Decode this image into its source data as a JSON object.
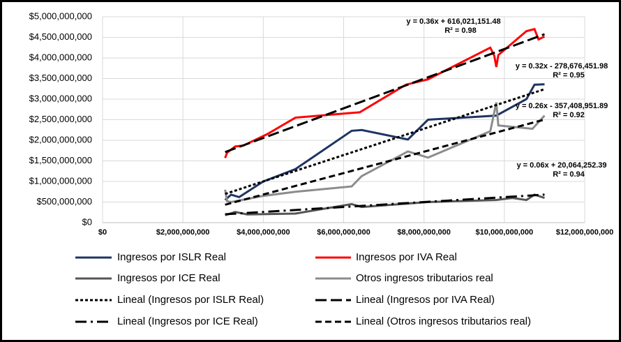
{
  "chart_data": {
    "type": "line",
    "xlim": [
      0,
      12000000000
    ],
    "xticks": [
      {
        "value": 0,
        "label": "$0"
      },
      {
        "value": 2000000000,
        "label": "$2,000,000,000"
      },
      {
        "value": 4000000000,
        "label": "$4,000,000,000"
      },
      {
        "value": 6000000000,
        "label": "$6,000,000,000"
      },
      {
        "value": 8000000000,
        "label": "$8,000,000,000"
      },
      {
        "value": 10000000000,
        "label": "$10,000,000,000"
      },
      {
        "value": 12000000000,
        "label": "$12,000,000,000"
      }
    ],
    "ylim": [
      0,
      5000000000
    ],
    "yticks": [
      {
        "value": 0,
        "label": "$0"
      },
      {
        "value": 500000000,
        "label": "$500,000,000"
      },
      {
        "value": 1000000000,
        "label": "$1,000,000,000"
      },
      {
        "value": 1500000000,
        "label": "$1,500,000,000"
      },
      {
        "value": 2000000000,
        "label": "$2,000,000,000"
      },
      {
        "value": 2500000000,
        "label": "$2,500,000,000"
      },
      {
        "value": 3000000000,
        "label": "$3,000,000,000"
      },
      {
        "value": 3500000000,
        "label": "$3,500,000,000"
      },
      {
        "value": 4000000000,
        "label": "$4,000,000,000"
      },
      {
        "value": 4500000000,
        "label": "$4,500,000,000"
      },
      {
        "value": 5000000000,
        "label": "$5,000,000,000"
      }
    ],
    "grid": true,
    "legend": "bottom",
    "series": [
      {
        "name": "Ingresos por ISLR Real",
        "color": "#1f3464",
        "dash": "solid",
        "x": [
          3050000000,
          3200000000,
          3400000000,
          4000000000,
          4800000000,
          6200000000,
          6450000000,
          7600000000,
          8100000000,
          9800000000,
          10550000000,
          10750000000,
          11000000000
        ],
        "values": [
          550000000,
          680000000,
          620000000,
          1000000000,
          1300000000,
          2230000000,
          2250000000,
          2020000000,
          2500000000,
          2600000000,
          3000000000,
          3350000000,
          3360000000
        ]
      },
      {
        "name": "Ingresos por IVA  Real",
        "color": "#ff0000",
        "dash": "solid",
        "x": [
          3050000000,
          3100000000,
          3300000000,
          3500000000,
          4100000000,
          4800000000,
          6400000000,
          7550000000,
          8100000000,
          9650000000,
          9750000000,
          9800000000,
          9850000000,
          10550000000,
          10750000000,
          10850000000,
          11000000000
        ],
        "values": [
          1570000000,
          1700000000,
          1850000000,
          1870000000,
          2150000000,
          2550000000,
          2680000000,
          3350000000,
          3480000000,
          4250000000,
          4050000000,
          3780000000,
          4070000000,
          4650000000,
          4700000000,
          4450000000,
          4520000000
        ]
      },
      {
        "name": "Ingresos por ICE Real",
        "color": "#555555",
        "dash": "solid",
        "x": [
          3050000000,
          3300000000,
          3600000000,
          4800000000,
          6200000000,
          6450000000,
          8100000000,
          9800000000,
          10200000000,
          10550000000,
          10750000000,
          11000000000
        ],
        "values": [
          180000000,
          260000000,
          200000000,
          220000000,
          450000000,
          380000000,
          500000000,
          550000000,
          600000000,
          550000000,
          680000000,
          600000000
        ]
      },
      {
        "name": "Otros ingresos tributarios real",
        "color": "#8c8c8c",
        "dash": "solid",
        "x": [
          3050000000,
          3100000000,
          3200000000,
          4000000000,
          4800000000,
          6200000000,
          6450000000,
          7600000000,
          8100000000,
          9650000000,
          9800000000,
          9850000000,
          10700000000,
          11000000000
        ],
        "values": [
          800000000,
          520000000,
          500000000,
          650000000,
          750000000,
          880000000,
          1130000000,
          1730000000,
          1580000000,
          2220000000,
          2920000000,
          2360000000,
          2280000000,
          2600000000
        ]
      },
      {
        "name": "Lineal (Ingresos por ISLR Real)",
        "color": "#000000",
        "dash": "dot",
        "equation": "y = 0.32x - 278,676,451.98",
        "r2": "R² = 0.95",
        "x": [
          3050000000,
          11000000000
        ],
        "values": [
          697000000,
          3241000000
        ]
      },
      {
        "name": "Lineal (Ingresos por IVA  Real)",
        "color": "#000000",
        "dash": "long-dash",
        "equation": "y = 0.36x + 616,021,151.48",
        "r2": "R² = 0.98",
        "x": [
          3050000000,
          11000000000
        ],
        "values": [
          1714000000,
          4576000000
        ]
      },
      {
        "name": "Lineal (Ingresos por ICE Real)",
        "color": "#000000",
        "dash": "long-dash-dot",
        "equation": "y = 0.06x + 20,064,252.39",
        "r2": "R² = 0.94",
        "x": [
          3050000000,
          11000000000
        ],
        "values": [
          203000000,
          680000000
        ]
      },
      {
        "name": "Lineal (Otros ingresos tributarios real)",
        "color": "#000000",
        "dash": "dash",
        "equation": "y = 0.26x - 357,408,951.89",
        "r2": "R² = 0.92",
        "x": [
          3050000000,
          11000000000
        ],
        "values": [
          436000000,
          2503000000
        ]
      }
    ]
  }
}
